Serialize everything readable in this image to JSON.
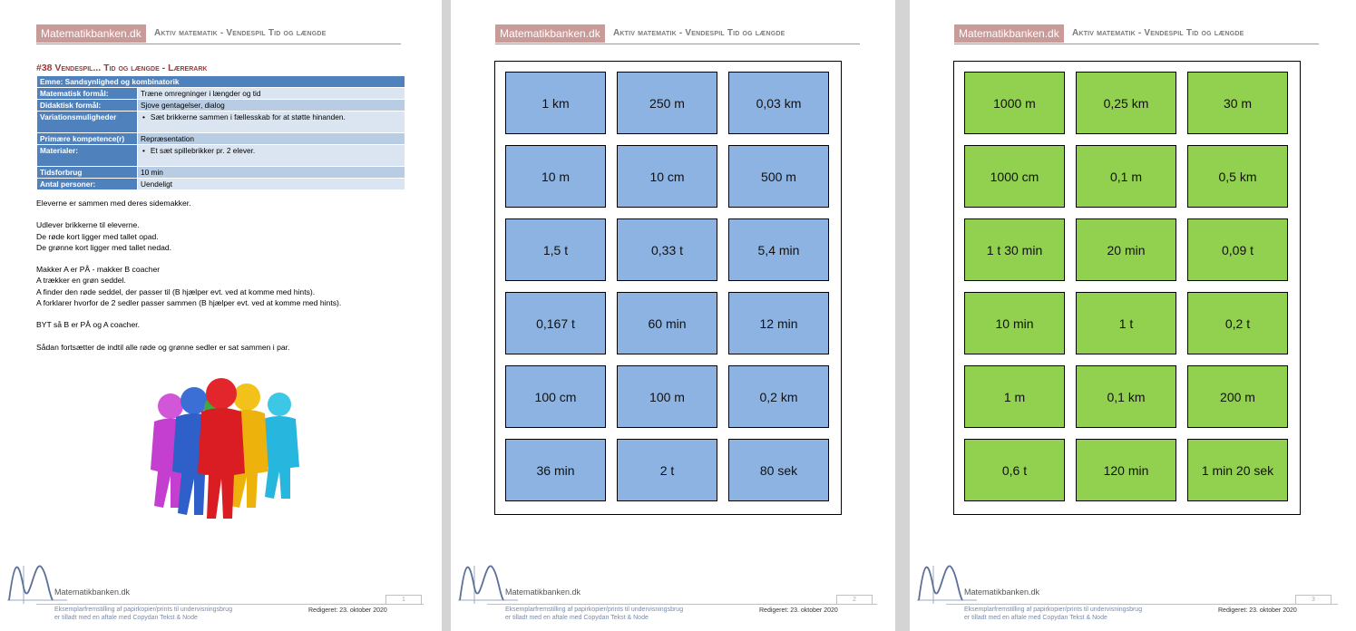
{
  "header": {
    "brand": "Matematikbanken.dk",
    "title": "Aktiv matematik - Vendespil Tid og længde"
  },
  "page1": {
    "doc_title": "#38 Vendespil... Tid og længde - Lærerark",
    "table": {
      "emne": "Emne: Sandsynlighed og kombinatorik",
      "rows": [
        {
          "label": "Matematisk formål:",
          "value": "Træne omregninger i længder og tid"
        },
        {
          "label": "Didaktisk formål:",
          "value": "Sjove gentagelser, dialog"
        },
        {
          "label": "Variationsmuligheder",
          "value": "Sæt brikkerne sammen i fællesskab for at støtte hinanden."
        },
        {
          "label": "Primære kompetence(r)",
          "value": "Repræsentation"
        },
        {
          "label": "Materialer:",
          "value": "Et sæt spillebrikker pr. 2 elever."
        },
        {
          "label": "Tidsforbrug",
          "value": "10 min"
        },
        {
          "label": "Antal personer:",
          "value": "Uendeligt"
        }
      ]
    },
    "body": {
      "l1": "Eleverne er sammen med deres sidemakker.",
      "l2": "Udlever brikkerne til eleverne.",
      "l3": "De røde kort ligger med tallet opad.",
      "l4": "De grønne kort ligger med tallet nedad.",
      "l5": "Makker A er PÅ - makker B coacher",
      "l6": "A trækker en grøn seddel.",
      "l7": "A finder den røde seddel, der passer til (B hjælper evt. ved at komme med hints).",
      "l8": "A forklarer hvorfor de 2 sedler passer sammen (B hjælper evt. ved at komme med hints).",
      "l9": "BYT så B er PÅ og A coacher.",
      "l10": "Sådan fortsætter de indtil alle røde og grønne sedler er sat sammen i par."
    }
  },
  "page2": {
    "cards": [
      "1 km",
      "250 m",
      "0,03 km",
      "10 m",
      "10 cm",
      "500 m",
      "1,5 t",
      "0,33 t",
      "5,4 min",
      "0,167 t",
      "60 min",
      "12 min",
      "100 cm",
      "100 m",
      "0,2 km",
      "36 min",
      "2 t",
      "80 sek"
    ]
  },
  "page3": {
    "cards": [
      "1000 m",
      "0,25 km",
      "30 m",
      "1000 cm",
      "0,1 m",
      "0,5 km",
      "1 t 30 min",
      "20 min",
      "0,09 t",
      "10 min",
      "1 t",
      "0,2 t",
      "1 m",
      "0,1 km",
      "200 m",
      "0,6 t",
      "120 min",
      "1 min 20 sek"
    ]
  },
  "footer": {
    "site": "Matematikbanken.dk",
    "line1": "Eksemplarfremstilling af papirkopier/prints til undervisningsbrug",
    "line2": "er tilladt med en aftale med Copydan Tekst & Node",
    "edited": "Redigeret: 23. oktober 2020",
    "page_numbers": [
      "1",
      "2",
      "3"
    ]
  },
  "colors": {
    "blue_card": "#8db3e2",
    "green_card": "#92d050",
    "brand_bg": "#c89a98",
    "table_header": "#4f81bd"
  }
}
